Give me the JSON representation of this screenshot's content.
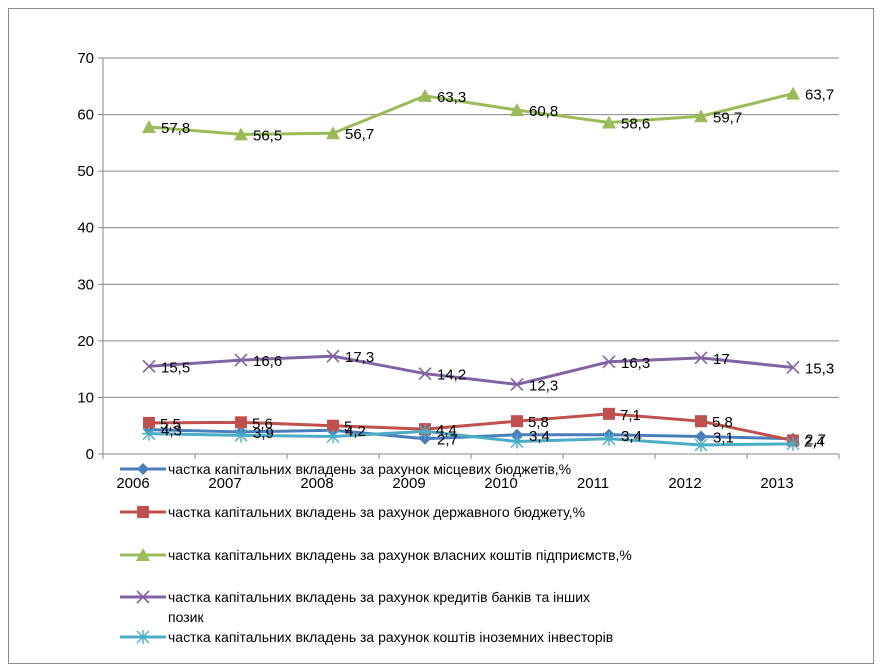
{
  "chart_data": {
    "type": "line",
    "categories": [
      "2006",
      "2007",
      "2008",
      "2009",
      "2010",
      "2011",
      "2012",
      "2013"
    ],
    "ylim": [
      0,
      70
    ],
    "yticks": [
      0,
      10,
      20,
      30,
      40,
      50,
      60,
      70
    ],
    "grid": true,
    "legend_position": "bottom",
    "series": [
      {
        "name": "частка капітальних вкладень за рахунок місцевих бюджетів,%",
        "color": "#4a7ebb",
        "marker": "diamond",
        "values": [
          4.3,
          3.9,
          4.2,
          2.7,
          3.4,
          3.4,
          3.1,
          2.7
        ],
        "labels": [
          "4,3",
          "3,9",
          "4,2",
          "2,7",
          "3,4",
          "3,4",
          "3,1",
          "2,7"
        ]
      },
      {
        "name": "частка капітальних вкладень за рахунок державного бюджету,%",
        "color": "#c0504d",
        "marker": "square",
        "values": [
          5.5,
          5.6,
          5.0,
          4.4,
          5.8,
          7.1,
          5.8,
          2.4
        ],
        "labels": [
          "5,5",
          "5,6",
          "5",
          "4,4",
          "5,8",
          "7,1",
          "5,8",
          "2,4"
        ]
      },
      {
        "name": "частка капітальних вкладень за рахунок власних коштів підприємств,%",
        "color": "#9bbb59",
        "marker": "triangle",
        "values": [
          57.8,
          56.5,
          56.7,
          63.3,
          60.8,
          58.6,
          59.7,
          63.7
        ],
        "labels": [
          "57,8",
          "56,5",
          "56,7",
          "63,3",
          "60,8",
          "58,6",
          "59,7",
          "63,7"
        ]
      },
      {
        "name": "частка капітальних вкладень за рахунок кредитів банків та інших позик",
        "color": "#8064a2",
        "marker": "x",
        "values": [
          15.5,
          16.6,
          17.3,
          14.2,
          12.3,
          16.3,
          17.0,
          15.3
        ],
        "labels": [
          "15,5",
          "16,6",
          "17,3",
          "14,2",
          "12,3",
          "16,3",
          "17",
          "15,3"
        ]
      },
      {
        "name": "частка капітальних вкладень за рахунок коштів іноземних інвесторів",
        "color": "#4bacc6",
        "marker": "star",
        "values": [
          3.6,
          3.3,
          3.1,
          4.0,
          2.2,
          2.7,
          1.6,
          1.8
        ],
        "labels": []
      }
    ]
  }
}
